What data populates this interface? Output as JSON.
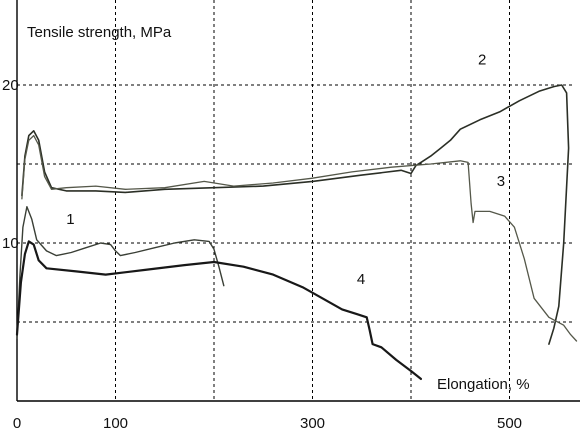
{
  "chart_data": {
    "type": "line",
    "title": "",
    "xlabel": "Elongation, %",
    "ylabel": "Tensile strength, MPa",
    "xlim": [
      0,
      580
    ],
    "ylim": [
      0,
      24
    ],
    "x_ticks": [
      {
        "value": 0,
        "label": "0"
      },
      {
        "value": 100,
        "label": "100"
      },
      {
        "value": 300,
        "label": "300"
      },
      {
        "value": 500,
        "label": "500"
      }
    ],
    "y_ticks": [
      {
        "value": 10,
        "label": "10"
      },
      {
        "value": 20,
        "label": "20"
      }
    ],
    "grid": true,
    "series": [
      {
        "name": "1",
        "color": "#3a3f36",
        "label_at": [
          50,
          11.2
        ],
        "points": [
          [
            0,
            4
          ],
          [
            3,
            8
          ],
          [
            6,
            11
          ],
          [
            10,
            12.3
          ],
          [
            15,
            11.5
          ],
          [
            20,
            10.2
          ],
          [
            30,
            9.5
          ],
          [
            40,
            9.2
          ],
          [
            55,
            9.4
          ],
          [
            70,
            9.7
          ],
          [
            85,
            10
          ],
          [
            95,
            9.9
          ],
          [
            100,
            9.5
          ],
          [
            105,
            9.2
          ],
          [
            120,
            9.4
          ],
          [
            140,
            9.7
          ],
          [
            160,
            10
          ],
          [
            180,
            10.2
          ],
          [
            195,
            10.1
          ],
          [
            200,
            9.6
          ],
          [
            205,
            8.5
          ],
          [
            210,
            7.3
          ]
        ]
      },
      {
        "name": "2",
        "color": "#2b2f26",
        "label_at": [
          468,
          21.3
        ],
        "points": [
          [
            5,
            13
          ],
          [
            8,
            15.5
          ],
          [
            12,
            16.8
          ],
          [
            17,
            17.1
          ],
          [
            22,
            16.5
          ],
          [
            28,
            14.5
          ],
          [
            35,
            13.5
          ],
          [
            50,
            13.3
          ],
          [
            80,
            13.3
          ],
          [
            110,
            13.2
          ],
          [
            150,
            13.4
          ],
          [
            200,
            13.5
          ],
          [
            250,
            13.6
          ],
          [
            300,
            13.9
          ],
          [
            350,
            14.3
          ],
          [
            390,
            14.6
          ],
          [
            400,
            14.4
          ],
          [
            405,
            14.9
          ],
          [
            410,
            15.1
          ],
          [
            420,
            15.5
          ],
          [
            430,
            16
          ],
          [
            440,
            16.5
          ],
          [
            450,
            17.2
          ],
          [
            470,
            17.8
          ],
          [
            490,
            18.3
          ],
          [
            510,
            19
          ],
          [
            530,
            19.6
          ],
          [
            545,
            19.9
          ],
          [
            553,
            20
          ],
          [
            558,
            19.5
          ],
          [
            560,
            16
          ],
          [
            555,
            10
          ],
          [
            550,
            6
          ],
          [
            545,
            4.6
          ],
          [
            540,
            3.6
          ]
        ]
      },
      {
        "name": "3",
        "color": "#55584a",
        "label_at": [
          487,
          13.6
        ],
        "points": [
          [
            5,
            12.8
          ],
          [
            8,
            15.3
          ],
          [
            12,
            16.5
          ],
          [
            17,
            16.8
          ],
          [
            22,
            16.2
          ],
          [
            28,
            14.2
          ],
          [
            35,
            13.4
          ],
          [
            50,
            13.5
          ],
          [
            80,
            13.6
          ],
          [
            110,
            13.4
          ],
          [
            150,
            13.5
          ],
          [
            190,
            13.9
          ],
          [
            220,
            13.6
          ],
          [
            260,
            13.8
          ],
          [
            300,
            14.1
          ],
          [
            340,
            14.5
          ],
          [
            380,
            14.8
          ],
          [
            420,
            15
          ],
          [
            450,
            15.2
          ],
          [
            458,
            15.1
          ],
          [
            461,
            12.5
          ],
          [
            463,
            11.3
          ],
          [
            465,
            12
          ],
          [
            480,
            12
          ],
          [
            495,
            11.7
          ],
          [
            505,
            11
          ],
          [
            515,
            9
          ],
          [
            525,
            6.5
          ],
          [
            540,
            5.3
          ],
          [
            555,
            4.8
          ],
          [
            562,
            4.2
          ],
          [
            568,
            3.8
          ]
        ]
      },
      {
        "name": "4",
        "color": "#181818",
        "label_at": [
          345,
          7.4
        ],
        "points": [
          [
            0,
            4.2
          ],
          [
            4,
            7.5
          ],
          [
            8,
            9.3
          ],
          [
            12,
            10.1
          ],
          [
            17,
            9.9
          ],
          [
            22,
            8.9
          ],
          [
            30,
            8.4
          ],
          [
            60,
            8.2
          ],
          [
            90,
            8
          ],
          [
            130,
            8.3
          ],
          [
            170,
            8.6
          ],
          [
            200,
            8.8
          ],
          [
            230,
            8.5
          ],
          [
            260,
            8
          ],
          [
            290,
            7.2
          ],
          [
            310,
            6.5
          ],
          [
            330,
            5.8
          ],
          [
            345,
            5.5
          ],
          [
            355,
            5.3
          ],
          [
            358,
            4.5
          ],
          [
            361,
            3.6
          ],
          [
            370,
            3.4
          ],
          [
            385,
            2.6
          ],
          [
            400,
            1.9
          ],
          [
            410,
            1.4
          ]
        ]
      }
    ]
  }
}
